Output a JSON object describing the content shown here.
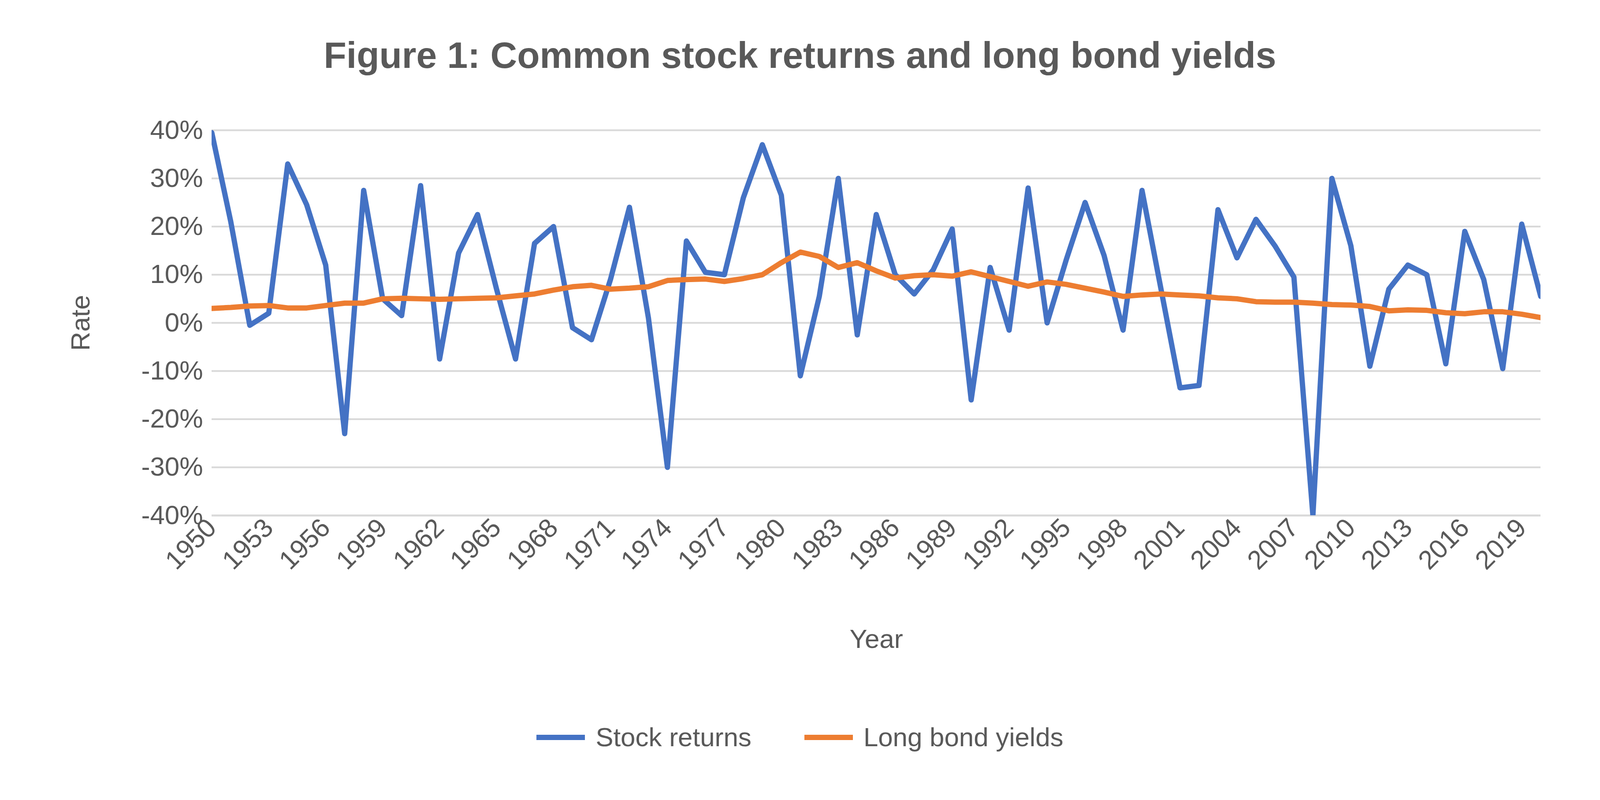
{
  "chart_data": {
    "type": "line",
    "title": "Figure 1: Common stock returns and long bond yields",
    "x_label": "Year",
    "y_label": "Rate",
    "x": [
      1950,
      1951,
      1952,
      1953,
      1954,
      1955,
      1956,
      1957,
      1958,
      1959,
      1960,
      1961,
      1962,
      1963,
      1964,
      1965,
      1966,
      1967,
      1968,
      1969,
      1970,
      1971,
      1972,
      1973,
      1974,
      1975,
      1976,
      1977,
      1978,
      1979,
      1980,
      1981,
      1982,
      1983,
      1984,
      1985,
      1986,
      1987,
      1988,
      1989,
      1990,
      1991,
      1992,
      1993,
      1994,
      1995,
      1996,
      1997,
      1998,
      1999,
      2000,
      2001,
      2002,
      2003,
      2004,
      2005,
      2006,
      2007,
      2008,
      2009,
      2010,
      2011,
      2012,
      2013,
      2014,
      2015,
      2016,
      2017,
      2018,
      2019,
      2020
    ],
    "xlim": [
      1950,
      2020
    ],
    "xticks": [
      1950,
      1953,
      1956,
      1959,
      1962,
      1965,
      1968,
      1971,
      1974,
      1977,
      1980,
      1983,
      1986,
      1989,
      1992,
      1995,
      1998,
      2001,
      2004,
      2007,
      2010,
      2013,
      2016,
      2019
    ],
    "ylim": [
      -40,
      40
    ],
    "yticks": [
      {
        "value": -40,
        "label": "-40%"
      },
      {
        "value": -30,
        "label": "-30%"
      },
      {
        "value": -20,
        "label": "-20%"
      },
      {
        "value": -10,
        "label": "-10%"
      },
      {
        "value": 0,
        "label": "0%"
      },
      {
        "value": 10,
        "label": "10%"
      },
      {
        "value": 20,
        "label": "20%"
      },
      {
        "value": 30,
        "label": "30%"
      },
      {
        "value": 40,
        "label": "40%"
      }
    ],
    "grid": true,
    "legend": "bottom",
    "series": [
      {
        "name": "Stock returns",
        "color": "#4472c4",
        "values": [
          39.5,
          21,
          -0.5,
          2,
          33,
          24.5,
          12,
          -23,
          27.5,
          5,
          1.5,
          28.5,
          -7.5,
          14.5,
          22.5,
          7,
          -7.5,
          16.5,
          20,
          -1,
          -3.5,
          9,
          24,
          1,
          -30,
          17,
          10.5,
          10,
          26,
          37,
          26.5,
          -11,
          5.5,
          30,
          -2.5,
          22.5,
          10,
          6,
          11,
          19.5,
          -16,
          11.5,
          -1.5,
          28,
          0,
          13,
          25,
          14,
          -1.5,
          27.5,
          7,
          -13.5,
          -13,
          23.5,
          13.5,
          21.5,
          16,
          9.5,
          -40,
          30,
          16,
          -9,
          7,
          12,
          10,
          -8.5,
          19,
          9,
          -9.5,
          20.5,
          5.5
        ]
      },
      {
        "name": "Long bond yields",
        "color": "#ed7d31",
        "values": [
          3,
          3.2,
          3.5,
          3.6,
          3.1,
          3.1,
          3.6,
          4.1,
          4.1,
          5,
          5.1,
          5,
          4.9,
          5,
          5.1,
          5.2,
          5.6,
          6,
          6.8,
          7.5,
          7.8,
          7,
          7.2,
          7.5,
          8.8,
          9,
          9.1,
          8.6,
          9.2,
          10,
          12.5,
          14.7,
          13.8,
          11.5,
          12.5,
          10.8,
          9.3,
          9.8,
          10,
          9.7,
          10.6,
          9.6,
          8.6,
          7.6,
          8.5,
          8,
          7.2,
          6.4,
          5.5,
          5.8,
          6,
          5.8,
          5.6,
          5.2,
          5,
          4.4,
          4.3,
          4.3,
          4.1,
          3.8,
          3.7,
          3.4,
          2.5,
          2.7,
          2.6,
          2.1,
          1.9,
          2.3,
          2.3,
          1.8,
          1.1
        ]
      }
    ]
  }
}
